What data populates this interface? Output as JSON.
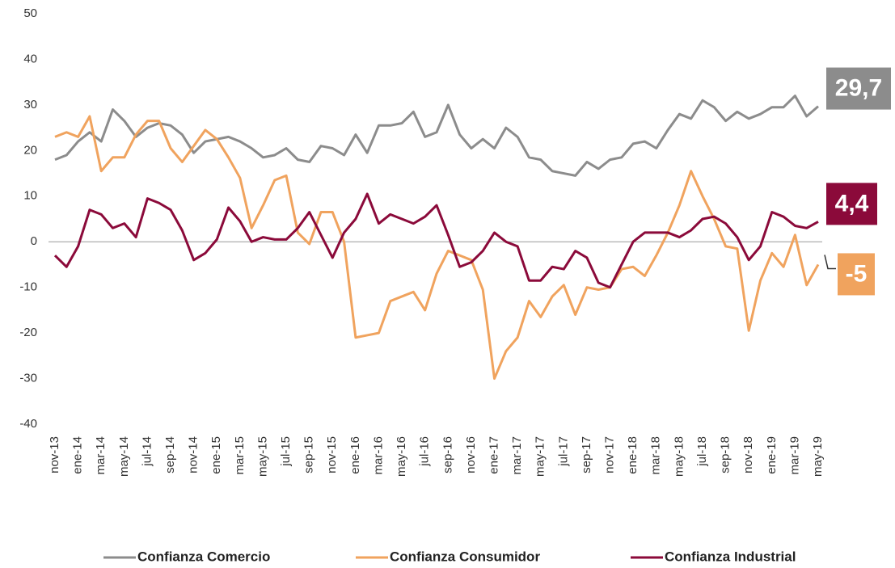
{
  "chart_data": {
    "type": "line",
    "categories": [
      "nov-13",
      null,
      "ene-14",
      null,
      "mar-14",
      null,
      "may-14",
      null,
      "jul-14",
      null,
      "sep-14",
      null,
      "nov-14",
      null,
      "ene-15",
      null,
      "mar-15",
      null,
      "may-15",
      null,
      "jul-15",
      null,
      "sep-15",
      null,
      "nov-15",
      null,
      "ene-16",
      null,
      "mar-16",
      null,
      "may-16",
      null,
      "jul-16",
      null,
      "sep-16",
      null,
      "nov-16",
      null,
      "ene-17",
      null,
      "mar-17",
      null,
      "may-17",
      null,
      "jul-17",
      null,
      "sep-17",
      null,
      "nov-17",
      null,
      "ene-18",
      null,
      "mar-18",
      null,
      "may-18",
      null,
      "jul-18",
      null,
      "sep-18",
      null,
      "nov-18",
      null,
      "ene-19",
      null,
      "mar-19",
      null,
      "may-19"
    ],
    "series": [
      {
        "name": "Confianza Comercio",
        "color": "#8c8c8c",
        "values": [
          18,
          19,
          22,
          24,
          22,
          29,
          26.5,
          23,
          25,
          26,
          25.5,
          23.5,
          19.5,
          22,
          22.5,
          23,
          22,
          20.5,
          18.5,
          19,
          20.5,
          18,
          17.5,
          21,
          20.5,
          19,
          23.5,
          19.5,
          25.5,
          25.5,
          26,
          28.5,
          23,
          24,
          30,
          23.5,
          20.5,
          22.5,
          20.5,
          25,
          23,
          18.5,
          18,
          15.5,
          15,
          14.5,
          17.5,
          16,
          18,
          18.5,
          21.5,
          22,
          20.5,
          24.5,
          28,
          27,
          31,
          29.5,
          26.5,
          28.5,
          27,
          28,
          29.5,
          29.5,
          32,
          27.5,
          29.7
        ],
        "value_labels": [
          null,
          null,
          null,
          null,
          null,
          null,
          null,
          null,
          null,
          null,
          null,
          null,
          null,
          null,
          null,
          null,
          null,
          null,
          null,
          null,
          null,
          null,
          null,
          null,
          null,
          null,
          null,
          null,
          null,
          null,
          null,
          null,
          null,
          null,
          null,
          null,
          null,
          null,
          null,
          null,
          null,
          null,
          null,
          null,
          null,
          null,
          null,
          null,
          null,
          null,
          null,
          null,
          null,
          null,
          null,
          null,
          null,
          null,
          null,
          null,
          null,
          null,
          null,
          null,
          null,
          null,
          "29,7"
        ]
      },
      {
        "name": "Confianza Consumidor",
        "color": "#f0a35e",
        "values": [
          23,
          24,
          23,
          27.5,
          15.5,
          18.5,
          18.5,
          23.5,
          26.5,
          26.5,
          20.5,
          17.5,
          21,
          24.5,
          22.5,
          18.5,
          14,
          3,
          8,
          13.5,
          14.5,
          2,
          -0.5,
          6.5,
          6.5,
          0,
          -21,
          -20.5,
          -20,
          -13,
          -12,
          -11,
          -15,
          -7,
          -2,
          -3,
          -4,
          -10.5,
          -30,
          -24,
          -21,
          -13,
          -16.5,
          -12,
          -9.5,
          -16,
          -10,
          -10.5,
          -10,
          -6,
          -5.5,
          -7.5,
          -3,
          2,
          8,
          15.5,
          10,
          5,
          -1,
          -1.5,
          -19.5,
          -8.5,
          -2.5,
          -5.5,
          1.5,
          -9.5,
          -5
        ],
        "value_labels": [
          null,
          null,
          null,
          null,
          null,
          null,
          null,
          null,
          null,
          null,
          null,
          null,
          null,
          null,
          null,
          null,
          null,
          null,
          null,
          null,
          null,
          null,
          null,
          null,
          null,
          null,
          null,
          null,
          null,
          null,
          null,
          null,
          null,
          null,
          null,
          null,
          null,
          null,
          null,
          null,
          null,
          null,
          null,
          null,
          null,
          null,
          null,
          null,
          null,
          null,
          null,
          null,
          null,
          null,
          null,
          null,
          null,
          null,
          null,
          null,
          null,
          null,
          null,
          null,
          null,
          null,
          "-5"
        ]
      },
      {
        "name": "Confianza Industrial",
        "color": "#8b0a3a",
        "values": [
          -3,
          -5.5,
          -1,
          7,
          6,
          3,
          4,
          1,
          9.5,
          8.5,
          7,
          2.5,
          -4,
          -2.5,
          0.5,
          7.5,
          4.5,
          0,
          1,
          0.5,
          0.5,
          3,
          6.5,
          1.5,
          -3.5,
          2,
          5,
          10.5,
          4,
          6,
          5,
          4,
          5.5,
          8,
          1.5,
          -5.5,
          -4.5,
          -2,
          2,
          0,
          -1,
          -8.5,
          -8.5,
          -5.5,
          -6,
          -2,
          -3.5,
          -9,
          -10,
          -5,
          0,
          2,
          2,
          2,
          1,
          2.5,
          5,
          5.5,
          4,
          1,
          -4,
          -1,
          6.5,
          5.5,
          3.5,
          3,
          4.4
        ],
        "value_labels": [
          null,
          null,
          null,
          null,
          null,
          null,
          null,
          null,
          null,
          null,
          null,
          null,
          null,
          null,
          null,
          null,
          null,
          null,
          null,
          null,
          null,
          null,
          null,
          null,
          null,
          null,
          null,
          null,
          null,
          null,
          null,
          null,
          null,
          null,
          null,
          null,
          null,
          null,
          null,
          null,
          null,
          null,
          null,
          null,
          null,
          null,
          null,
          null,
          null,
          null,
          null,
          null,
          null,
          null,
          null,
          null,
          null,
          null,
          null,
          null,
          null,
          null,
          null,
          null,
          null,
          null,
          "4,4"
        ]
      }
    ],
    "ylim": [
      -40,
      50
    ],
    "yticks": [
      -40,
      -30,
      -20,
      -10,
      0,
      10,
      20,
      30,
      40,
      50
    ],
    "grid": false,
    "legend": "bottom"
  }
}
